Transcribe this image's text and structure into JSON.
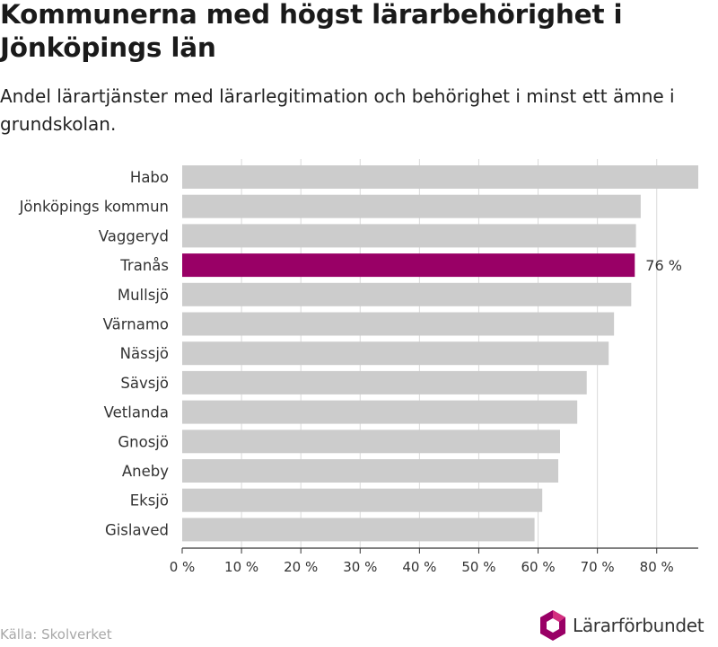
{
  "title": "Kommunerna med högst lärarbehörighet i Jönköpings län",
  "subtitle": "Andel lärartjänster med lärarlegitimation och behörighet i minst ett ämne i grundskolan.",
  "source": "Källa: Skolverket",
  "logo_text": "Lärarförbundet",
  "colors": {
    "bar": "#cccccc",
    "highlight": "#990066",
    "grid": "#d9d9d9",
    "axis": "#333333",
    "logo_primary": "#990066",
    "logo_secondary": "#d4307f"
  },
  "chart_data": {
    "type": "bar",
    "orientation": "horizontal",
    "categories": [
      "Habo",
      "Jönköpings kommun",
      "Vaggeryd",
      "Tranås",
      "Mullsjö",
      "Värnamo",
      "Nässjö",
      "Sävsjö",
      "Vetlanda",
      "Gnosjö",
      "Aneby",
      "Eksjö",
      "Gislaved"
    ],
    "values": [
      87,
      77.3,
      76.5,
      76.3,
      75.7,
      72.8,
      71.9,
      68.2,
      66.6,
      63.7,
      63.4,
      60.7,
      59.4
    ],
    "highlight_index": 3,
    "data_labels": [
      {
        "index": 3,
        "text": "76 %"
      }
    ],
    "xlim": [
      0,
      87
    ],
    "xticks": [
      0,
      10,
      20,
      30,
      40,
      50,
      60,
      70,
      80
    ],
    "xtick_labels": [
      "0 %",
      "10 %",
      "20 %",
      "30 %",
      "40 %",
      "50 %",
      "60 %",
      "70 %",
      "80 %"
    ],
    "grid": true
  }
}
